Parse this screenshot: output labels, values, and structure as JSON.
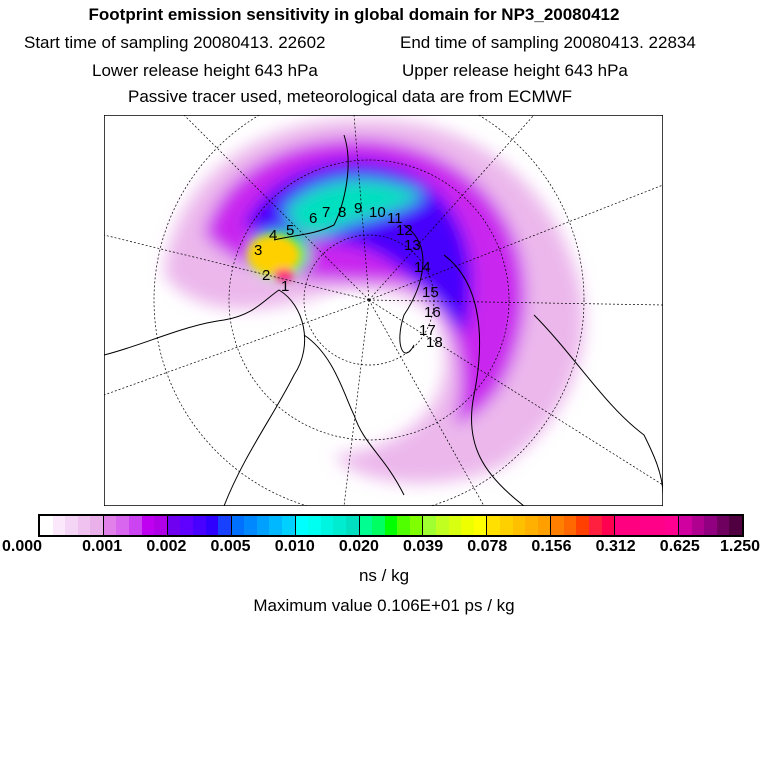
{
  "header": {
    "title": "Footprint emission sensitivity in global domain for NP3_20080412",
    "start_time": "Start time of sampling 20080413. 22602",
    "end_time": "End time of sampling 20080413. 22834",
    "lower_height": "Lower release height  643 hPa",
    "upper_height": "Upper release height  643 hPa",
    "note": "Passive tracer used, meteorological data are from ECMWF"
  },
  "map": {
    "trajectory_labels": [
      "1",
      "2",
      "3",
      "4",
      "5",
      "6",
      "7",
      "8",
      "9",
      "10",
      "11",
      "12",
      "13",
      "14",
      "15",
      "16",
      "17",
      "18"
    ]
  },
  "colorbar": {
    "ticks": [
      "0.000",
      "0.001",
      "0.002",
      "0.005",
      "0.010",
      "0.020",
      "0.039",
      "0.078",
      "0.156",
      "0.312",
      "0.625",
      "1.250"
    ],
    "colors": [
      [
        "#ffffff",
        "#fbe8fb",
        "#f5d5f5",
        "#f0c2f0",
        "#eab0ea"
      ],
      [
        "#e080e8",
        "#d866ee",
        "#cc44f2",
        "#c000f0",
        "#b000e8"
      ],
      [
        "#7000f0",
        "#6000ff",
        "#4800ff",
        "#3000ff",
        "#1840ff"
      ],
      [
        "#0070ff",
        "#0088ff",
        "#00a0ff",
        "#00b8ff",
        "#00d0ff"
      ],
      [
        "#00ffff",
        "#00fff0",
        "#00f5e0",
        "#00ecd0",
        "#00e0c0"
      ],
      [
        "#00ff90",
        "#00ff60",
        "#00ff00",
        "#50ff00",
        "#80ff00"
      ],
      [
        "#a0ff30",
        "#c0ff20",
        "#d8ff10",
        "#eeff00",
        "#ffff00"
      ],
      [
        "#ffe000",
        "#ffd000",
        "#ffc000",
        "#ffb000",
        "#ffa000"
      ],
      [
        "#ff8000",
        "#ff6800",
        "#ff4000",
        "#ff2040",
        "#ff0050"
      ],
      [
        "#ff0080",
        "#ff0080",
        "#ff0088",
        "#ff0088",
        "#ff0090"
      ],
      [
        "#d000a0",
        "#b00090",
        "#900080",
        "#700060",
        "#500040"
      ]
    ],
    "units": "ns / kg",
    "max_value": "Maximum value  0.106E+01 ps / kg"
  }
}
